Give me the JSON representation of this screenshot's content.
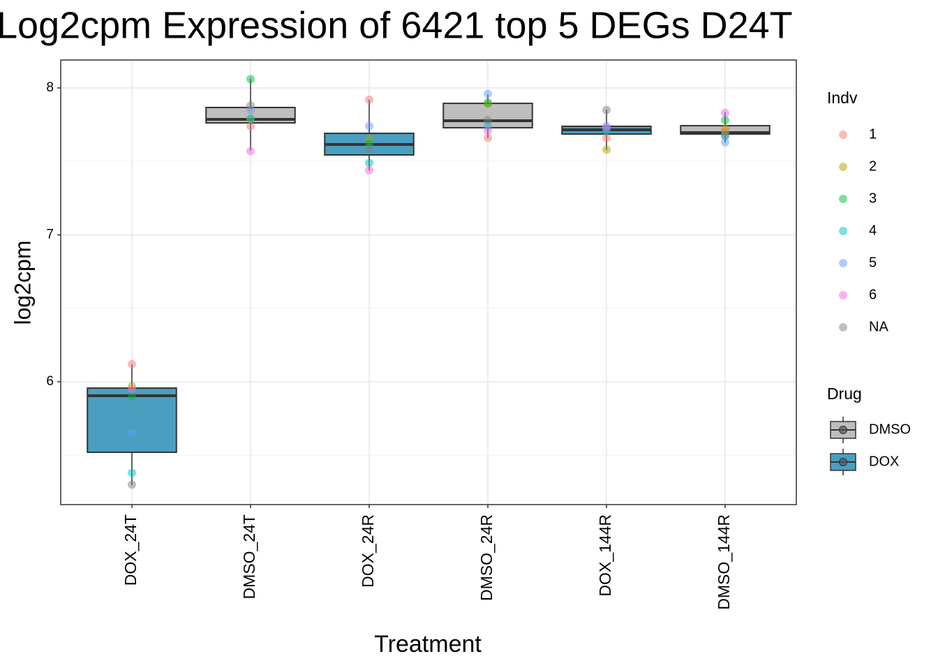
{
  "chart_data": {
    "type": "box",
    "title": "Log2cpm Expression of 6421 top 5 DEGs D24T",
    "x_label": "Treatment",
    "y_label": "log2cpm",
    "categories": [
      "DOX_24T",
      "DMSO_24T",
      "DOX_24R",
      "DMSO_24R",
      "DOX_144R",
      "DMSO_144R"
    ],
    "ylim": [
      5.164,
      8.19
    ],
    "yticks": [
      6,
      7,
      8
    ],
    "minor_yticks": [
      5.5,
      6.5,
      7.5
    ],
    "grid": true,
    "boxes": [
      {
        "drug": "DOX",
        "low": 5.297,
        "q1": 5.52,
        "median": 5.905,
        "q3": 5.957,
        "high": 6.119
      },
      {
        "drug": "DMSO",
        "low": 7.572,
        "q1": 7.762,
        "median": 7.786,
        "q3": 7.867,
        "high": 8.062
      },
      {
        "drug": "DOX",
        "low": 7.439,
        "q1": 7.544,
        "median": 7.615,
        "q3": 7.691,
        "high": 7.919
      },
      {
        "drug": "DMSO",
        "low": 7.658,
        "q1": 7.729,
        "median": 7.777,
        "q3": 7.895,
        "high": 7.957
      },
      {
        "drug": "DOX",
        "low": 7.577,
        "q1": 7.686,
        "median": 7.715,
        "q3": 7.739,
        "high": 7.853
      },
      {
        "drug": "DMSO",
        "low": 7.629,
        "q1": 7.686,
        "median": 7.696,
        "q3": 7.743,
        "high": 7.834
      }
    ],
    "box_legend": {
      "title": "Drug",
      "items": [
        {
          "name": "DMSO",
          "color": "#bebebe"
        },
        {
          "name": "DOX",
          "color": "#4a9fc0"
        }
      ]
    },
    "legend_title": "Indv",
    "series": [
      {
        "name": "1",
        "color": "#F8766D",
        "values": [
          6.12,
          7.74,
          7.92,
          7.66,
          7.66,
          7.7
        ]
      },
      {
        "name": "2",
        "color": "#B79F00",
        "values": [
          5.97,
          7.79,
          7.65,
          7.89,
          7.58,
          7.72
        ]
      },
      {
        "name": "3",
        "color": "#00BA38",
        "values": [
          5.9,
          8.06,
          7.62,
          7.9,
          7.72,
          7.78
        ]
      },
      {
        "name": "4",
        "color": "#00BFC4",
        "values": [
          5.38,
          7.79,
          7.49,
          7.74,
          7.71,
          7.67
        ]
      },
      {
        "name": "5",
        "color": "#619CFF",
        "values": [
          5.65,
          7.85,
          7.74,
          7.96,
          7.74,
          7.63
        ]
      },
      {
        "name": "6",
        "color": "#F564E3",
        "values": [
          5.95,
          7.57,
          7.44,
          7.71,
          7.73,
          7.83
        ]
      },
      {
        "name": "NA",
        "color": "#7f7f7f",
        "values": [
          5.3,
          7.88,
          7.59,
          7.78,
          7.85,
          7.68
        ]
      }
    ]
  }
}
